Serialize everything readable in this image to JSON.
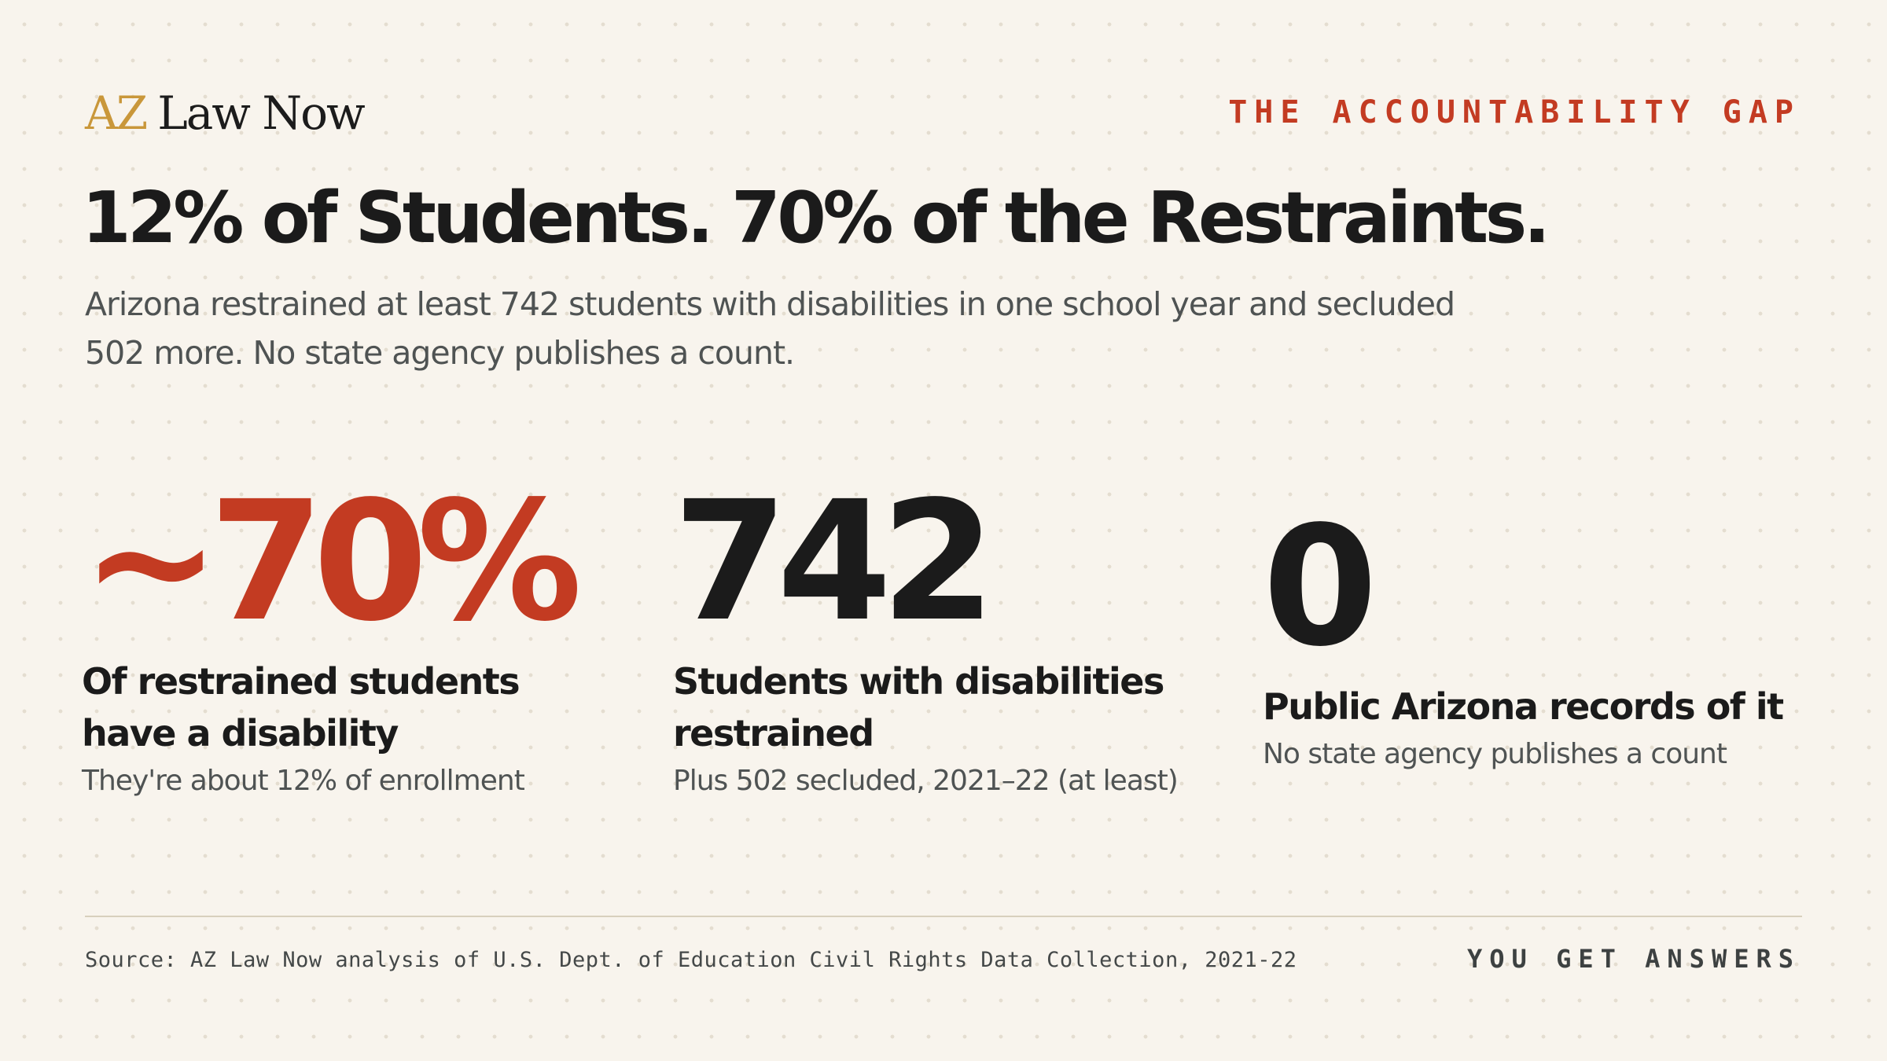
{
  "brand": {
    "logo_accent": "AZ",
    "logo_rest": "Law Now",
    "accent_color": "#c9973a"
  },
  "kicker": "THE ACCOUNTABILITY GAP",
  "headline": "12% of Students. 70% of the Restraints.",
  "dek": "Arizona restrained at least 742 students with disabilities in one school year and secluded 502 more. No state agency publishes a count.",
  "stats": [
    {
      "value": "~70%",
      "label": "Of restrained students have a disability",
      "sub": "They're about 12% of enrollment",
      "color": "#c33b22"
    },
    {
      "value": "742",
      "label": "Students with disabilities restrained",
      "sub": "Plus 502 secluded, 2021–22 (at least)",
      "color": "#1b1b1b"
    },
    {
      "value": "0",
      "label": "Public Arizona records of it",
      "sub": "No state agency publishes a count",
      "color": "#1b1b1b"
    }
  ],
  "footer": {
    "source": "Source: AZ Law Now analysis of U.S. Dept. of Education Civil Rights Data Collection, 2021-22",
    "tagline": "YOU GET ANSWERS"
  },
  "colors": {
    "background": "#f8f4ed",
    "highlight_red": "#c33b22",
    "text_dark": "#1b1b1b",
    "text_muted": "#4f5353"
  }
}
